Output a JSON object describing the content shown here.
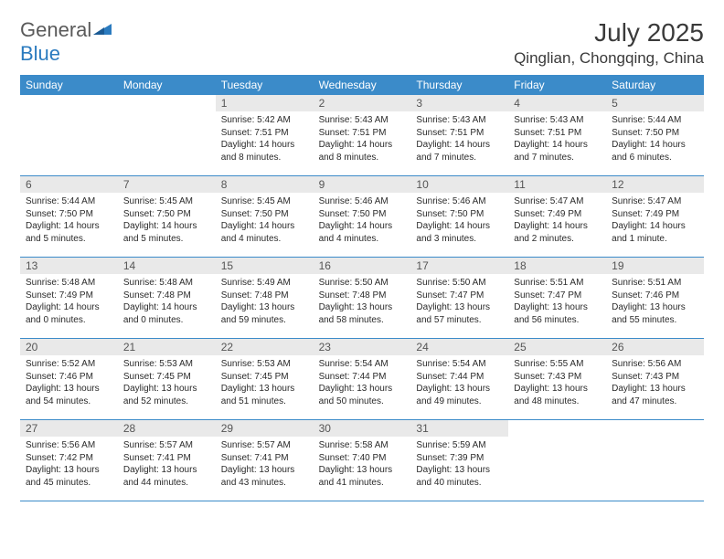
{
  "logo": {
    "text1": "General",
    "text2": "Blue"
  },
  "title": "July 2025",
  "location": "Qinglian, Chongqing, China",
  "colors": {
    "header_bg": "#3b8bc9",
    "daynum_bg": "#e9e9e9",
    "logo_gray": "#5a5a5a",
    "logo_blue": "#2b7bbf"
  },
  "weekdays": [
    "Sunday",
    "Monday",
    "Tuesday",
    "Wednesday",
    "Thursday",
    "Friday",
    "Saturday"
  ],
  "weeks": [
    [
      {
        "n": "",
        "sr": "",
        "ss": "",
        "dl": ""
      },
      {
        "n": "",
        "sr": "",
        "ss": "",
        "dl": ""
      },
      {
        "n": "1",
        "sr": "5:42 AM",
        "ss": "7:51 PM",
        "dl": "14 hours and 8 minutes."
      },
      {
        "n": "2",
        "sr": "5:43 AM",
        "ss": "7:51 PM",
        "dl": "14 hours and 8 minutes."
      },
      {
        "n": "3",
        "sr": "5:43 AM",
        "ss": "7:51 PM",
        "dl": "14 hours and 7 minutes."
      },
      {
        "n": "4",
        "sr": "5:43 AM",
        "ss": "7:51 PM",
        "dl": "14 hours and 7 minutes."
      },
      {
        "n": "5",
        "sr": "5:44 AM",
        "ss": "7:50 PM",
        "dl": "14 hours and 6 minutes."
      }
    ],
    [
      {
        "n": "6",
        "sr": "5:44 AM",
        "ss": "7:50 PM",
        "dl": "14 hours and 5 minutes."
      },
      {
        "n": "7",
        "sr": "5:45 AM",
        "ss": "7:50 PM",
        "dl": "14 hours and 5 minutes."
      },
      {
        "n": "8",
        "sr": "5:45 AM",
        "ss": "7:50 PM",
        "dl": "14 hours and 4 minutes."
      },
      {
        "n": "9",
        "sr": "5:46 AM",
        "ss": "7:50 PM",
        "dl": "14 hours and 4 minutes."
      },
      {
        "n": "10",
        "sr": "5:46 AM",
        "ss": "7:50 PM",
        "dl": "14 hours and 3 minutes."
      },
      {
        "n": "11",
        "sr": "5:47 AM",
        "ss": "7:49 PM",
        "dl": "14 hours and 2 minutes."
      },
      {
        "n": "12",
        "sr": "5:47 AM",
        "ss": "7:49 PM",
        "dl": "14 hours and 1 minute."
      }
    ],
    [
      {
        "n": "13",
        "sr": "5:48 AM",
        "ss": "7:49 PM",
        "dl": "14 hours and 0 minutes."
      },
      {
        "n": "14",
        "sr": "5:48 AM",
        "ss": "7:48 PM",
        "dl": "14 hours and 0 minutes."
      },
      {
        "n": "15",
        "sr": "5:49 AM",
        "ss": "7:48 PM",
        "dl": "13 hours and 59 minutes."
      },
      {
        "n": "16",
        "sr": "5:50 AM",
        "ss": "7:48 PM",
        "dl": "13 hours and 58 minutes."
      },
      {
        "n": "17",
        "sr": "5:50 AM",
        "ss": "7:47 PM",
        "dl": "13 hours and 57 minutes."
      },
      {
        "n": "18",
        "sr": "5:51 AM",
        "ss": "7:47 PM",
        "dl": "13 hours and 56 minutes."
      },
      {
        "n": "19",
        "sr": "5:51 AM",
        "ss": "7:46 PM",
        "dl": "13 hours and 55 minutes."
      }
    ],
    [
      {
        "n": "20",
        "sr": "5:52 AM",
        "ss": "7:46 PM",
        "dl": "13 hours and 54 minutes."
      },
      {
        "n": "21",
        "sr": "5:53 AM",
        "ss": "7:45 PM",
        "dl": "13 hours and 52 minutes."
      },
      {
        "n": "22",
        "sr": "5:53 AM",
        "ss": "7:45 PM",
        "dl": "13 hours and 51 minutes."
      },
      {
        "n": "23",
        "sr": "5:54 AM",
        "ss": "7:44 PM",
        "dl": "13 hours and 50 minutes."
      },
      {
        "n": "24",
        "sr": "5:54 AM",
        "ss": "7:44 PM",
        "dl": "13 hours and 49 minutes."
      },
      {
        "n": "25",
        "sr": "5:55 AM",
        "ss": "7:43 PM",
        "dl": "13 hours and 48 minutes."
      },
      {
        "n": "26",
        "sr": "5:56 AM",
        "ss": "7:43 PM",
        "dl": "13 hours and 47 minutes."
      }
    ],
    [
      {
        "n": "27",
        "sr": "5:56 AM",
        "ss": "7:42 PM",
        "dl": "13 hours and 45 minutes."
      },
      {
        "n": "28",
        "sr": "5:57 AM",
        "ss": "7:41 PM",
        "dl": "13 hours and 44 minutes."
      },
      {
        "n": "29",
        "sr": "5:57 AM",
        "ss": "7:41 PM",
        "dl": "13 hours and 43 minutes."
      },
      {
        "n": "30",
        "sr": "5:58 AM",
        "ss": "7:40 PM",
        "dl": "13 hours and 41 minutes."
      },
      {
        "n": "31",
        "sr": "5:59 AM",
        "ss": "7:39 PM",
        "dl": "13 hours and 40 minutes."
      },
      {
        "n": "",
        "sr": "",
        "ss": "",
        "dl": ""
      },
      {
        "n": "",
        "sr": "",
        "ss": "",
        "dl": ""
      }
    ]
  ],
  "labels": {
    "sunrise": "Sunrise:",
    "sunset": "Sunset:",
    "daylight": "Daylight:"
  }
}
